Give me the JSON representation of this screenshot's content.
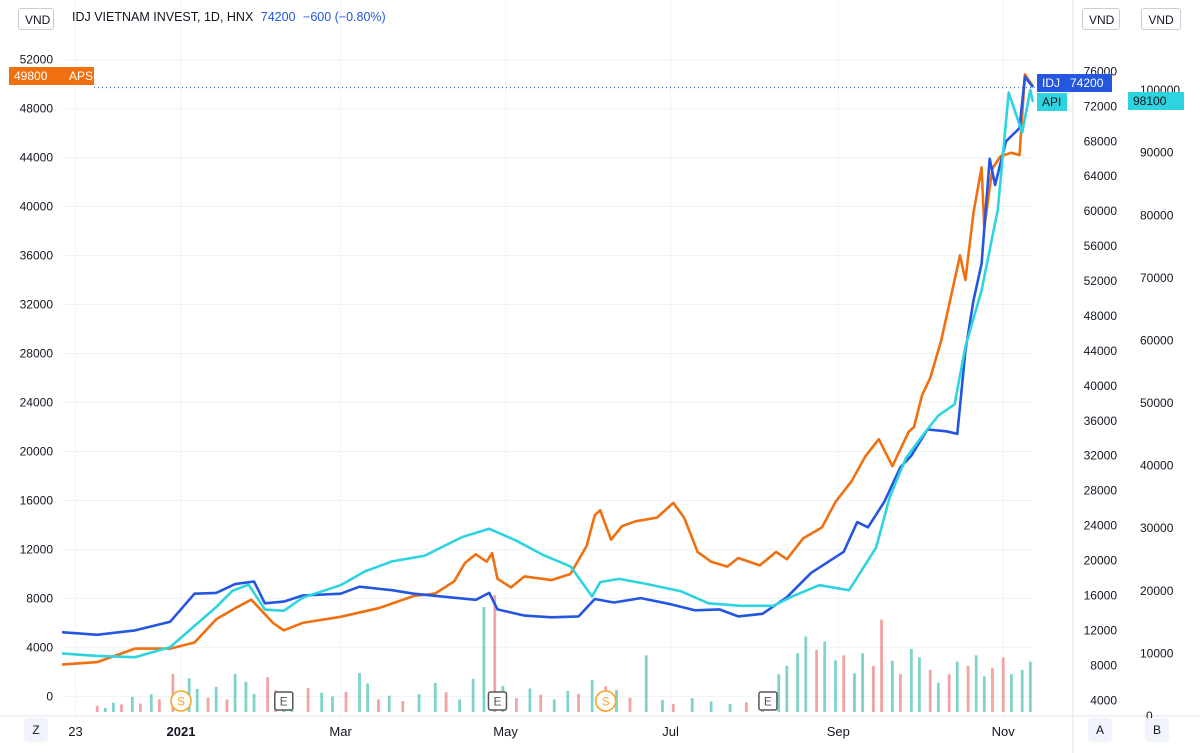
{
  "header": {
    "symbol_info": "IDJ VIETNAM INVEST, 1D, HNX",
    "last_price": "74200",
    "change": "−600 (−0.80%)"
  },
  "currency_buttons": {
    "left": "VND",
    "right": "VND",
    "far_right": "VND"
  },
  "corner_buttons": {
    "z": "Z",
    "a": "A",
    "b": "B"
  },
  "price_tags": {
    "aps_value": "49800",
    "aps_label": "APS",
    "idj_label": "IDJ",
    "idj_value": "74200",
    "api_label": "API",
    "api_value": "98100"
  },
  "event_markers": [
    {
      "label": "S",
      "kind": "split",
      "date": "2021-01-01"
    },
    {
      "label": "E",
      "kind": "earnings",
      "date": "2021-02-08"
    },
    {
      "label": "E",
      "kind": "earnings",
      "date": "2021-04-28"
    },
    {
      "label": "S",
      "kind": "split",
      "date": "2021-06-07"
    },
    {
      "label": "E",
      "kind": "earnings",
      "date": "2021-08-06"
    }
  ],
  "colors": {
    "aps": "#f0700f",
    "idj": "#2456e0",
    "api": "#2dd4e0",
    "volume_up": "#7fd3c9",
    "volume_down": "#f2a3a3",
    "grid": "#f0f3fa",
    "marker_split": "#f5a623",
    "marker_earnings": "#555555"
  },
  "chart_data": {
    "type": "line",
    "x_axis": {
      "start": "2020-11-18",
      "end": "2021-11-12",
      "tick_labels": [
        {
          "label": "23",
          "date": "2020-11-23",
          "bold": false
        },
        {
          "label": "2021",
          "date": "2021-01-01",
          "bold": true
        },
        {
          "label": "Mar",
          "date": "2021-03-01",
          "bold": false
        },
        {
          "label": "May",
          "date": "2021-05-01",
          "bold": false
        },
        {
          "label": "Jul",
          "date": "2021-07-01",
          "bold": false
        },
        {
          "label": "Sep",
          "date": "2021-09-01",
          "bold": false
        },
        {
          "label": "Nov",
          "date": "2021-11-01",
          "bold": false
        }
      ]
    },
    "axes": {
      "left": {
        "ylim": [
          -1600,
          53600
        ],
        "ticks": [
          0,
          4000,
          8000,
          12000,
          16000,
          20000,
          24000,
          28000,
          32000,
          36000,
          40000,
          44000,
          48000,
          52000
        ]
      },
      "middle": {
        "ylim": [
          2200,
          79600
        ],
        "ticks": [
          4000,
          8000,
          12000,
          16000,
          20000,
          24000,
          28000,
          32000,
          36000,
          40000,
          44000,
          48000,
          52000,
          56000,
          60000,
          64000,
          68000,
          72000,
          76000
        ]
      },
      "right": {
        "ylim": [
          0,
          108000
        ],
        "ticks": [
          0,
          10000,
          20000,
          30000,
          40000,
          50000,
          60000,
          70000,
          80000,
          90000,
          100000
        ]
      }
    },
    "series": [
      {
        "name": "APS",
        "axis": "left",
        "points": [
          [
            "2020-11-18",
            2600
          ],
          [
            "2020-12-01",
            2800
          ],
          [
            "2020-12-15",
            3900
          ],
          [
            "2020-12-28",
            3900
          ],
          [
            "2021-01-06",
            4400
          ],
          [
            "2021-01-14",
            6300
          ],
          [
            "2021-01-21",
            7200
          ],
          [
            "2021-01-27",
            7900
          ],
          [
            "2021-02-04",
            6000
          ],
          [
            "2021-02-08",
            5400
          ],
          [
            "2021-02-15",
            6000
          ],
          [
            "2021-03-01",
            6500
          ],
          [
            "2021-03-15",
            7200
          ],
          [
            "2021-03-28",
            8200
          ],
          [
            "2021-04-05",
            8400
          ],
          [
            "2021-04-12",
            9400
          ],
          [
            "2021-04-16",
            10900
          ],
          [
            "2021-04-20",
            11600
          ],
          [
            "2021-04-24",
            11000
          ],
          [
            "2021-04-26",
            11700
          ],
          [
            "2021-04-28",
            9600
          ],
          [
            "2021-05-03",
            8900
          ],
          [
            "2021-05-08",
            9800
          ],
          [
            "2021-05-18",
            9500
          ],
          [
            "2021-05-25",
            10000
          ],
          [
            "2021-05-31",
            12300
          ],
          [
            "2021-06-03",
            14800
          ],
          [
            "2021-06-05",
            15200
          ],
          [
            "2021-06-09",
            12800
          ],
          [
            "2021-06-13",
            13900
          ],
          [
            "2021-06-18",
            14300
          ],
          [
            "2021-06-26",
            14600
          ],
          [
            "2021-07-02",
            15800
          ],
          [
            "2021-07-06",
            14600
          ],
          [
            "2021-07-11",
            11800
          ],
          [
            "2021-07-16",
            11000
          ],
          [
            "2021-07-22",
            10600
          ],
          [
            "2021-07-26",
            11300
          ],
          [
            "2021-08-03",
            10700
          ],
          [
            "2021-08-09",
            11800
          ],
          [
            "2021-08-13",
            11200
          ],
          [
            "2021-08-19",
            12900
          ],
          [
            "2021-08-26",
            13800
          ],
          [
            "2021-08-31",
            15900
          ],
          [
            "2021-09-06",
            17600
          ],
          [
            "2021-09-11",
            19600
          ],
          [
            "2021-09-16",
            21000
          ],
          [
            "2021-09-21",
            18800
          ],
          [
            "2021-09-27",
            21600
          ],
          [
            "2021-09-29",
            22000
          ],
          [
            "2021-10-02",
            24600
          ],
          [
            "2021-10-05",
            26000
          ],
          [
            "2021-10-09",
            29000
          ],
          [
            "2021-10-13",
            33000
          ],
          [
            "2021-10-16",
            36000
          ],
          [
            "2021-10-18",
            34000
          ],
          [
            "2021-10-21",
            39500
          ],
          [
            "2021-10-24",
            43200
          ],
          [
            "2021-10-25",
            38300
          ],
          [
            "2021-10-28",
            43100
          ],
          [
            "2021-10-31",
            44100
          ],
          [
            "2021-11-04",
            44400
          ],
          [
            "2021-11-07",
            44200
          ],
          [
            "2021-11-09",
            50800
          ],
          [
            "2021-11-12",
            49800
          ]
        ]
      },
      {
        "name": "IDJ",
        "axis": "middle",
        "points": [
          [
            "2020-11-18",
            11800
          ],
          [
            "2020-12-01",
            11500
          ],
          [
            "2020-12-15",
            12000
          ],
          [
            "2020-12-28",
            13000
          ],
          [
            "2021-01-06",
            16200
          ],
          [
            "2021-01-14",
            16300
          ],
          [
            "2021-01-21",
            17300
          ],
          [
            "2021-01-28",
            17600
          ],
          [
            "2021-02-01",
            15100
          ],
          [
            "2021-02-08",
            15300
          ],
          [
            "2021-02-15",
            16000
          ],
          [
            "2021-03-01",
            16200
          ],
          [
            "2021-03-08",
            17000
          ],
          [
            "2021-03-20",
            16600
          ],
          [
            "2021-03-28",
            16200
          ],
          [
            "2021-04-10",
            15800
          ],
          [
            "2021-04-20",
            15500
          ],
          [
            "2021-04-25",
            16300
          ],
          [
            "2021-04-28",
            14400
          ],
          [
            "2021-05-08",
            13700
          ],
          [
            "2021-05-18",
            13500
          ],
          [
            "2021-05-28",
            13600
          ],
          [
            "2021-06-03",
            15600
          ],
          [
            "2021-06-10",
            15200
          ],
          [
            "2021-06-20",
            15700
          ],
          [
            "2021-07-01",
            15000
          ],
          [
            "2021-07-10",
            14300
          ],
          [
            "2021-07-19",
            14400
          ],
          [
            "2021-07-26",
            13600
          ],
          [
            "2021-08-04",
            13900
          ],
          [
            "2021-08-13",
            15800
          ],
          [
            "2021-08-22",
            18600
          ],
          [
            "2021-09-03",
            21000
          ],
          [
            "2021-09-08",
            24400
          ],
          [
            "2021-09-12",
            23800
          ],
          [
            "2021-09-18",
            26700
          ],
          [
            "2021-09-24",
            30700
          ],
          [
            "2021-09-28",
            32000
          ],
          [
            "2021-10-04",
            35000
          ],
          [
            "2021-10-11",
            34800
          ],
          [
            "2021-10-15",
            34500
          ],
          [
            "2021-10-18",
            44000
          ],
          [
            "2021-10-21",
            49800
          ],
          [
            "2021-10-24",
            54000
          ],
          [
            "2021-10-27",
            66000
          ],
          [
            "2021-10-29",
            63000
          ],
          [
            "2021-11-02",
            68000
          ],
          [
            "2021-11-07",
            69500
          ],
          [
            "2021-11-09",
            75400
          ],
          [
            "2021-11-12",
            74200
          ]
        ]
      },
      {
        "name": "API",
        "axis": "right",
        "points": [
          [
            "2020-11-18",
            10000
          ],
          [
            "2020-12-01",
            9600
          ],
          [
            "2020-12-15",
            9400
          ],
          [
            "2020-12-28",
            11000
          ],
          [
            "2021-01-06",
            14400
          ],
          [
            "2021-01-14",
            17400
          ],
          [
            "2021-01-20",
            20000
          ],
          [
            "2021-01-26",
            21000
          ],
          [
            "2021-02-01",
            17000
          ],
          [
            "2021-02-08",
            16800
          ],
          [
            "2021-02-15",
            18900
          ],
          [
            "2021-03-01",
            20900
          ],
          [
            "2021-03-10",
            23100
          ],
          [
            "2021-03-20",
            24700
          ],
          [
            "2021-04-01",
            25600
          ],
          [
            "2021-04-15",
            28600
          ],
          [
            "2021-04-25",
            29900
          ],
          [
            "2021-05-05",
            28000
          ],
          [
            "2021-05-15",
            25700
          ],
          [
            "2021-05-25",
            23900
          ],
          [
            "2021-06-02",
            19100
          ],
          [
            "2021-06-05",
            21400
          ],
          [
            "2021-06-12",
            21900
          ],
          [
            "2021-06-22",
            21100
          ],
          [
            "2021-07-05",
            19900
          ],
          [
            "2021-07-15",
            18000
          ],
          [
            "2021-07-27",
            17600
          ],
          [
            "2021-08-08",
            17600
          ],
          [
            "2021-08-15",
            19100
          ],
          [
            "2021-08-25",
            20900
          ],
          [
            "2021-09-05",
            20100
          ],
          [
            "2021-09-15",
            26900
          ],
          [
            "2021-09-20",
            34900
          ],
          [
            "2021-09-26",
            41200
          ],
          [
            "2021-10-02",
            44700
          ],
          [
            "2021-10-08",
            48000
          ],
          [
            "2021-10-14",
            49800
          ],
          [
            "2021-10-18",
            59000
          ],
          [
            "2021-10-24",
            68000
          ],
          [
            "2021-10-30",
            80900
          ],
          [
            "2021-11-03",
            99600
          ],
          [
            "2021-11-08",
            93200
          ],
          [
            "2021-11-11",
            100000
          ],
          [
            "2021-11-12",
            98100
          ]
        ]
      }
    ],
    "volume": [
      [
        "2020-12-01",
        1.5,
        "d"
      ],
      [
        "2020-12-04",
        1.0,
        "u"
      ],
      [
        "2020-12-07",
        2.2,
        "u"
      ],
      [
        "2020-12-10",
        1.8,
        "d"
      ],
      [
        "2020-12-14",
        3.6,
        "u"
      ],
      [
        "2020-12-17",
        2.0,
        "d"
      ],
      [
        "2020-12-21",
        4.2,
        "u"
      ],
      [
        "2020-12-24",
        3.0,
        "d"
      ],
      [
        "2020-12-29",
        9.1,
        "d"
      ],
      [
        "2021-01-04",
        8.0,
        "u"
      ],
      [
        "2021-01-07",
        5.5,
        "u"
      ],
      [
        "2021-01-11",
        3.4,
        "d"
      ],
      [
        "2021-01-14",
        6.0,
        "u"
      ],
      [
        "2021-01-18",
        3.0,
        "d"
      ],
      [
        "2021-01-21",
        9.1,
        "u"
      ],
      [
        "2021-01-25",
        7.2,
        "u"
      ],
      [
        "2021-01-28",
        4.3,
        "u"
      ],
      [
        "2021-02-02",
        8.3,
        "d"
      ],
      [
        "2021-02-05",
        5.2,
        "d"
      ],
      [
        "2021-02-08",
        4.0,
        "u"
      ],
      [
        "2021-02-11",
        3.1,
        "u"
      ],
      [
        "2021-02-17",
        5.7,
        "d"
      ],
      [
        "2021-02-22",
        4.6,
        "u"
      ],
      [
        "2021-02-26",
        3.7,
        "u"
      ],
      [
        "2021-03-03",
        4.8,
        "d"
      ],
      [
        "2021-03-08",
        9.3,
        "u"
      ],
      [
        "2021-03-11",
        6.8,
        "u"
      ],
      [
        "2021-03-15",
        3.0,
        "d"
      ],
      [
        "2021-03-19",
        3.9,
        "u"
      ],
      [
        "2021-03-24",
        2.6,
        "d"
      ],
      [
        "2021-03-30",
        4.2,
        "u"
      ],
      [
        "2021-04-05",
        6.9,
        "u"
      ],
      [
        "2021-04-09",
        4.7,
        "d"
      ],
      [
        "2021-04-14",
        3.0,
        "u"
      ],
      [
        "2021-04-19",
        7.9,
        "u"
      ],
      [
        "2021-04-23",
        25.0,
        "u"
      ],
      [
        "2021-04-27",
        27.8,
        "d"
      ],
      [
        "2021-04-30",
        6.2,
        "u"
      ],
      [
        "2021-05-05",
        3.3,
        "d"
      ],
      [
        "2021-05-10",
        5.6,
        "u"
      ],
      [
        "2021-05-14",
        4.1,
        "d"
      ],
      [
        "2021-05-19",
        3.0,
        "u"
      ],
      [
        "2021-05-24",
        5.0,
        "u"
      ],
      [
        "2021-05-28",
        4.3,
        "d"
      ],
      [
        "2021-06-02",
        7.6,
        "u"
      ],
      [
        "2021-06-07",
        6.1,
        "d"
      ],
      [
        "2021-06-11",
        5.2,
        "u"
      ],
      [
        "2021-06-16",
        3.4,
        "d"
      ],
      [
        "2021-06-22",
        13.5,
        "u"
      ],
      [
        "2021-06-28",
        2.9,
        "u"
      ],
      [
        "2021-07-02",
        1.9,
        "d"
      ],
      [
        "2021-07-09",
        3.3,
        "u"
      ],
      [
        "2021-07-16",
        2.5,
        "u"
      ],
      [
        "2021-07-23",
        1.9,
        "u"
      ],
      [
        "2021-07-29",
        2.3,
        "d"
      ],
      [
        "2021-08-04",
        1.8,
        "u"
      ],
      [
        "2021-08-10",
        9.0,
        "u"
      ],
      [
        "2021-08-13",
        11.0,
        "u"
      ],
      [
        "2021-08-17",
        14.0,
        "u"
      ],
      [
        "2021-08-20",
        18.0,
        "u"
      ],
      [
        "2021-08-24",
        14.8,
        "d"
      ],
      [
        "2021-08-27",
        16.8,
        "u"
      ],
      [
        "2021-08-31",
        12.3,
        "u"
      ],
      [
        "2021-09-03",
        13.5,
        "d"
      ],
      [
        "2021-09-07",
        9.2,
        "u"
      ],
      [
        "2021-09-10",
        14.0,
        "u"
      ],
      [
        "2021-09-14",
        11.0,
        "d"
      ],
      [
        "2021-09-17",
        22.0,
        "d"
      ],
      [
        "2021-09-21",
        12.2,
        "u"
      ],
      [
        "2021-09-24",
        9.0,
        "d"
      ],
      [
        "2021-09-28",
        15.0,
        "u"
      ],
      [
        "2021-10-01",
        13.0,
        "u"
      ],
      [
        "2021-10-05",
        10.0,
        "d"
      ],
      [
        "2021-10-08",
        7.0,
        "u"
      ],
      [
        "2021-10-12",
        9.0,
        "d"
      ],
      [
        "2021-10-15",
        12.0,
        "u"
      ],
      [
        "2021-10-19",
        11.0,
        "d"
      ],
      [
        "2021-10-22",
        13.5,
        "u"
      ],
      [
        "2021-10-25",
        8.5,
        "u"
      ],
      [
        "2021-10-28",
        10.5,
        "d"
      ],
      [
        "2021-11-01",
        13.0,
        "d"
      ],
      [
        "2021-11-04",
        9.0,
        "u"
      ],
      [
        "2021-11-08",
        10.0,
        "u"
      ],
      [
        "2021-11-11",
        12.0,
        "u"
      ]
    ]
  }
}
